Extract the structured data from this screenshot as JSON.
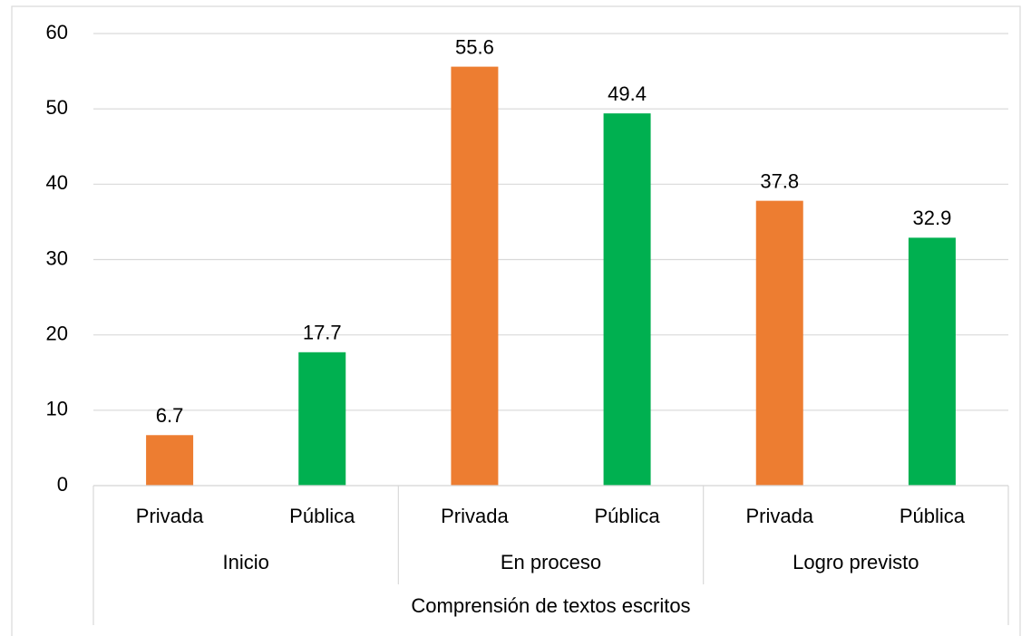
{
  "chart_data": {
    "type": "bar",
    "supergroup": "Comprensión de textos escritos",
    "groups": [
      "Inicio",
      "En proceso",
      "Logro previsto"
    ],
    "categories": [
      "Privada",
      "Pública",
      "Privada",
      "Pública",
      "Privada",
      "Pública"
    ],
    "values": [
      6.7,
      17.7,
      55.6,
      49.4,
      37.8,
      32.9
    ],
    "colors": [
      "#ED7D31",
      "#00B050",
      "#ED7D31",
      "#00B050",
      "#ED7D31",
      "#00B050"
    ],
    "ylim": [
      0,
      60
    ],
    "yticks": [
      0,
      10,
      20,
      30,
      40,
      50,
      60
    ],
    "grid": true
  }
}
